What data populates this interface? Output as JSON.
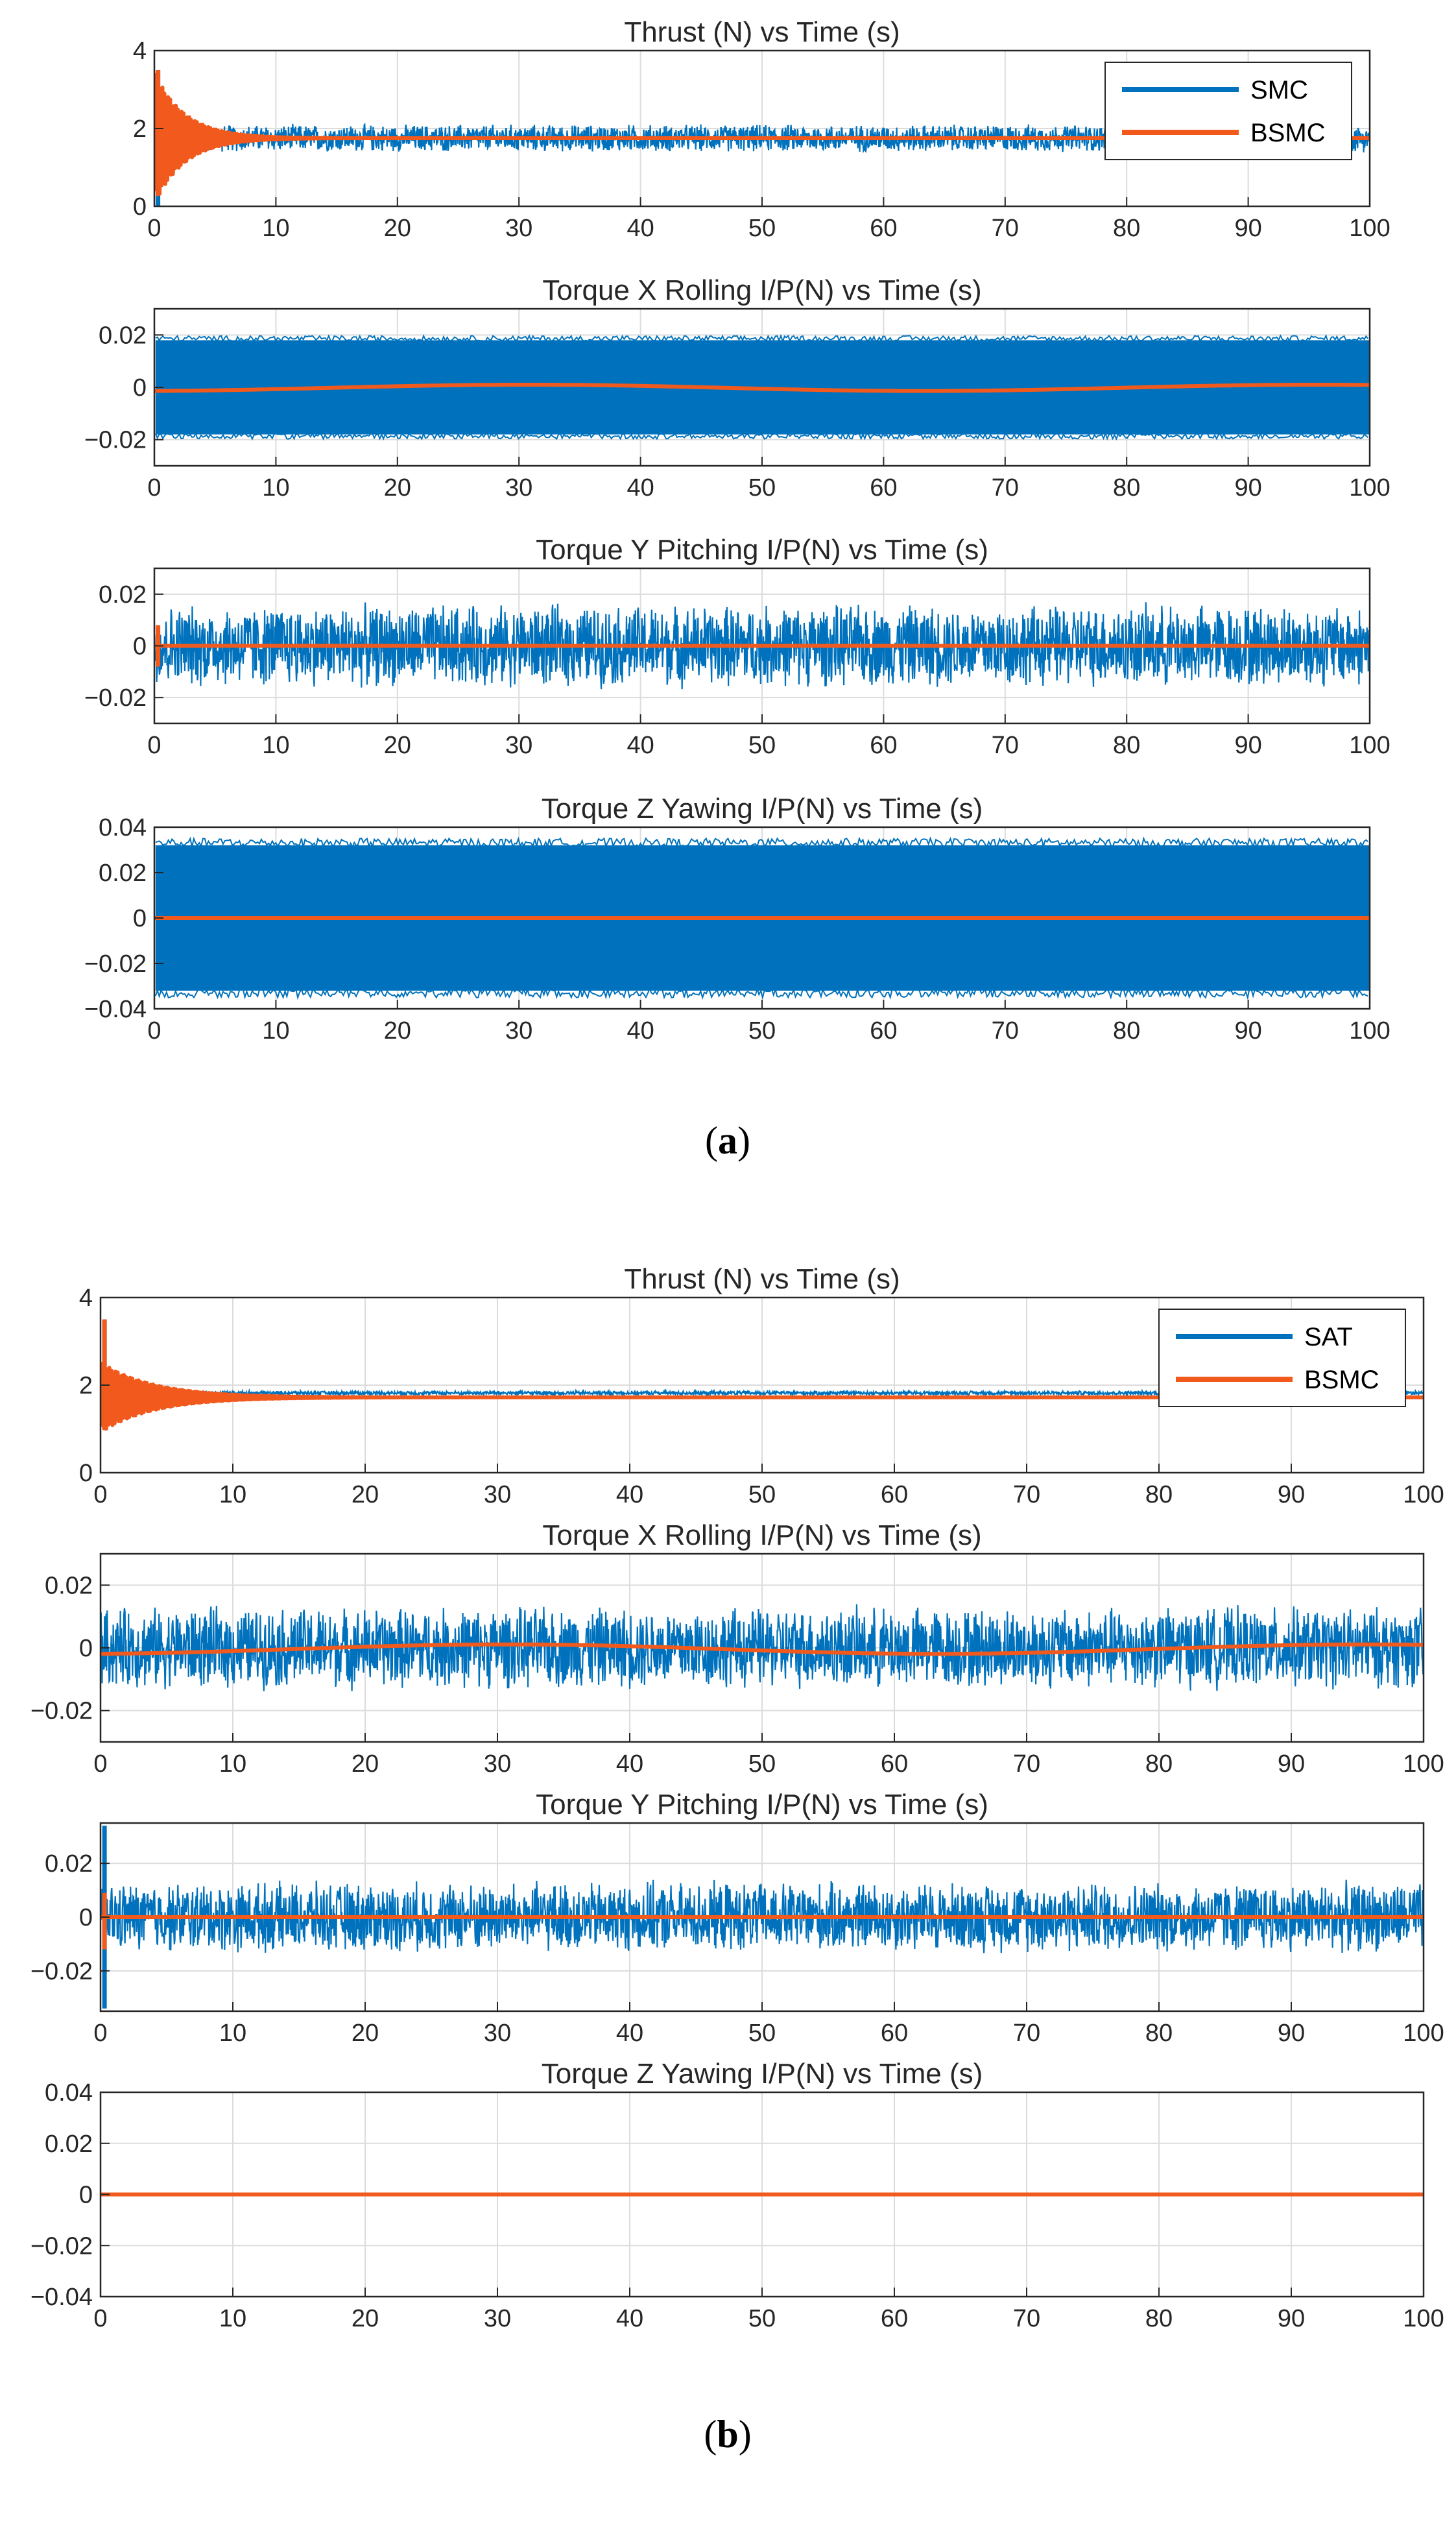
{
  "colors": {
    "series_a": "#0072BD",
    "series_b": "#F25A1D",
    "grid": "#dcdcdc",
    "axis": "#262626"
  },
  "panel_labels": {
    "a_open": "(",
    "a_letter": "a",
    "a_close": ")",
    "b_open": "(",
    "b_letter": "b",
    "b_close": ")"
  },
  "chart_data": [
    {
      "panel": "a",
      "type": "line",
      "title": "Thrust (N) vs Time (s)",
      "xlim": [
        0,
        100
      ],
      "ylim": [
        0,
        4
      ],
      "xticks": [
        0,
        10,
        20,
        30,
        40,
        50,
        60,
        70,
        80,
        90,
        100
      ],
      "yticks": [
        0,
        2,
        4
      ],
      "ytick_labels": [
        "0",
        "2",
        "4"
      ],
      "legend": {
        "position": "top-right",
        "entries": [
          "SMC",
          "BSMC"
        ]
      },
      "series": [
        {
          "name": "SMC",
          "kind": "noise",
          "center": 1.75,
          "amp": 0.38,
          "spike": 3.5,
          "dip": 0
        },
        {
          "name": "BSMC",
          "kind": "decay",
          "center": 1.75,
          "amp0": 1.7,
          "tau": 2.5,
          "spike": 3.5
        }
      ]
    },
    {
      "panel": "a",
      "type": "line",
      "title": "Torque X Rolling I/P(N) vs Time (s)",
      "xlim": [
        0,
        100
      ],
      "ylim": [
        -0.03,
        0.03
      ],
      "xticks": [
        0,
        10,
        20,
        30,
        40,
        50,
        60,
        70,
        80,
        90,
        100
      ],
      "yticks": [
        -0.02,
        0,
        0.02
      ],
      "ytick_labels": [
        "−0.02",
        "0",
        "0.02"
      ],
      "series": [
        {
          "name": "SMC",
          "kind": "band",
          "center": 0,
          "amp": 0.018
        },
        {
          "name": "BSMC",
          "kind": "sine",
          "offset": -0.0002,
          "amp": 0.0012,
          "period": 65,
          "phase": -1.4
        }
      ]
    },
    {
      "panel": "a",
      "type": "line",
      "title": "Torque Y Pitching I/P(N) vs Time (s)",
      "xlim": [
        0,
        100
      ],
      "ylim": [
        -0.03,
        0.03
      ],
      "xticks": [
        0,
        10,
        20,
        30,
        40,
        50,
        60,
        70,
        80,
        90,
        100
      ],
      "yticks": [
        -0.02,
        0,
        0.02
      ],
      "ytick_labels": [
        "−0.02",
        "0",
        "0.02"
      ],
      "series": [
        {
          "name": "SMC",
          "kind": "noise",
          "center": 0,
          "amp": 0.017
        },
        {
          "name": "BSMC",
          "kind": "flat",
          "value": 0,
          "spike": 0.008,
          "dip": -0.008
        }
      ]
    },
    {
      "panel": "a",
      "type": "line",
      "title": "Torque Z Yawing I/P(N) vs Time (s)",
      "xlim": [
        0,
        100
      ],
      "ylim": [
        -0.04,
        0.04
      ],
      "xticks": [
        0,
        10,
        20,
        30,
        40,
        50,
        60,
        70,
        80,
        90,
        100
      ],
      "yticks": [
        -0.04,
        -0.02,
        0,
        0.02,
        0.04
      ],
      "ytick_labels": [
        "−0.04",
        "−0.02",
        "0",
        "0.02",
        "0.04"
      ],
      "series": [
        {
          "name": "SMC",
          "kind": "band",
          "center": 0,
          "amp": 0.032
        },
        {
          "name": "BSMC",
          "kind": "flat",
          "value": 0
        }
      ]
    },
    {
      "panel": "b",
      "type": "line",
      "title": "Thrust (N) vs Time (s)",
      "xlim": [
        0,
        100
      ],
      "ylim": [
        0,
        4
      ],
      "xticks": [
        0,
        10,
        20,
        30,
        40,
        50,
        60,
        70,
        80,
        90,
        100
      ],
      "yticks": [
        0,
        2,
        4
      ],
      "ytick_labels": [
        "0",
        "2",
        "4"
      ],
      "legend": {
        "position": "top-right",
        "entries": [
          "SAT",
          "BSMC"
        ]
      },
      "series": [
        {
          "name": "SAT",
          "kind": "noise",
          "center": 1.82,
          "amp": 0.05,
          "spike": 3.5
        },
        {
          "name": "BSMC",
          "kind": "decay",
          "center": 1.72,
          "amp0": 0.8,
          "tau": 4,
          "spike": 3.5
        }
      ]
    },
    {
      "panel": "b",
      "type": "line",
      "title": "Torque X Rolling I/P(N) vs Time (s)",
      "xlim": [
        0,
        100
      ],
      "ylim": [
        -0.03,
        0.03
      ],
      "xticks": [
        0,
        10,
        20,
        30,
        40,
        50,
        60,
        70,
        80,
        90,
        100
      ],
      "yticks": [
        -0.02,
        0,
        0.02
      ],
      "ytick_labels": [
        "−0.02",
        "0",
        "0.02"
      ],
      "series": [
        {
          "name": "SAT",
          "kind": "noise",
          "center": 0,
          "amp": 0.014
        },
        {
          "name": "BSMC",
          "kind": "sine",
          "offset": -0.0004,
          "amp": 0.0015,
          "period": 65,
          "phase": -1.4
        }
      ]
    },
    {
      "panel": "b",
      "type": "line",
      "title": "Torque Y Pitching I/P(N) vs Time (s)",
      "xlim": [
        0,
        100
      ],
      "ylim": [
        -0.035,
        0.035
      ],
      "xticks": [
        0,
        10,
        20,
        30,
        40,
        50,
        60,
        70,
        80,
        90,
        100
      ],
      "yticks": [
        -0.02,
        0,
        0.02
      ],
      "ytick_labels": [
        "−0.02",
        "0",
        "0.02"
      ],
      "series": [
        {
          "name": "SAT",
          "kind": "noise",
          "center": 0,
          "amp": 0.014,
          "spike": 0.034,
          "dip": -0.034
        },
        {
          "name": "BSMC",
          "kind": "flat",
          "value": 0,
          "spike": 0.009,
          "dip": -0.012
        }
      ]
    },
    {
      "panel": "b",
      "type": "line",
      "title": "Torque Z Yawing I/P(N) vs Time (s)",
      "xlim": [
        0,
        100
      ],
      "ylim": [
        -0.04,
        0.04
      ],
      "xticks": [
        0,
        10,
        20,
        30,
        40,
        50,
        60,
        70,
        80,
        90,
        100
      ],
      "yticks": [
        -0.04,
        -0.02,
        0,
        0.02,
        0.04
      ],
      "ytick_labels": [
        "−0.04",
        "−0.02",
        "0",
        "0.02",
        "0.04"
      ],
      "series": [
        {
          "name": "SAT",
          "kind": "flat",
          "value": 0
        },
        {
          "name": "BSMC",
          "kind": "flat",
          "value": 0
        }
      ]
    }
  ]
}
